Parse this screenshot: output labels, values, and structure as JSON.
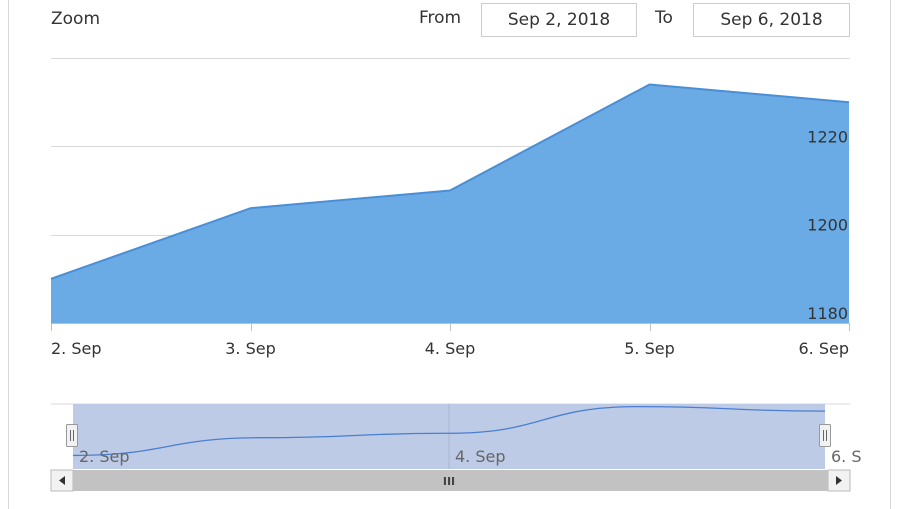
{
  "range_selector": {
    "zoom_label": "Zoom",
    "from_label": "From",
    "to_label": "To",
    "from_value": "Sep 2, 2018",
    "to_value": "Sep 6, 2018"
  },
  "colors": {
    "area_fill": "#6aabe6",
    "area_line": "#4a8fd6",
    "grid": "#d9d9d9",
    "navigator_mask": "#b9c8e6",
    "navigator_line": "#4a7fd0",
    "scrollbar_track": "#c8c8c8",
    "scrollbar_button": "#f2f2f2"
  },
  "chart_data": {
    "type": "area",
    "x": [
      "2. Sep",
      "3. Sep",
      "4. Sep",
      "5. Sep",
      "6. Sep"
    ],
    "series": [
      {
        "values": [
          1190,
          1206,
          1210,
          1234,
          1230
        ]
      }
    ],
    "ylim": [
      1180,
      1240
    ],
    "yticks": [
      1180,
      1200,
      1220
    ],
    "grid": true,
    "y_axis_side": "right"
  },
  "navigator": {
    "labels": [
      "2. Sep",
      "4. Sep",
      "6. S"
    ],
    "scroll_grip": "III"
  }
}
